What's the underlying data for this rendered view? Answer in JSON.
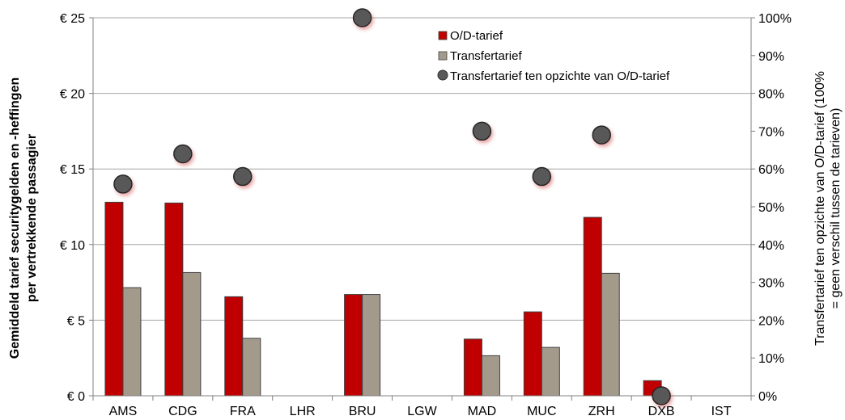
{
  "chart_data": {
    "type": "bar",
    "categories": [
      "AMS",
      "CDG",
      "FRA",
      "LHR",
      "BRU",
      "LGW",
      "MAD",
      "MUC",
      "ZRH",
      "DXB",
      "IST"
    ],
    "series": [
      {
        "name": "O/D-tarief",
        "type": "bar",
        "axis": "left",
        "color": "#c00000",
        "values": [
          12.8,
          12.75,
          6.55,
          null,
          6.7,
          null,
          3.75,
          5.55,
          11.8,
          1.0,
          null
        ]
      },
      {
        "name": "Transfertarief",
        "type": "bar",
        "axis": "left",
        "color": "#a39a8c",
        "values": [
          7.15,
          8.15,
          3.8,
          null,
          6.7,
          null,
          2.65,
          3.2,
          8.1,
          null,
          null
        ]
      },
      {
        "name": "Transfertarief ten opzichte van O/D-tarief",
        "type": "scatter",
        "axis": "right",
        "color": "#595959",
        "values": [
          56,
          64,
          58,
          null,
          100,
          null,
          70,
          58,
          69,
          0,
          null
        ]
      }
    ],
    "y_left": {
      "label_line1": "Gemiddeld tarief securitygelden en -heffingen",
      "label_line2": "per vertrekkende passagier",
      "ticks": [
        "€ 0",
        "€ 5",
        "€ 10",
        "€ 15",
        "€ 20",
        "€ 25"
      ],
      "tick_values": [
        0,
        5,
        10,
        15,
        20,
        25
      ],
      "ylim": [
        0,
        25
      ]
    },
    "y_right": {
      "label_line1": "Transfertarief ten opzichte van O/D-tarief (100%",
      "label_line2": "= geen verschil tussen de tarieven)",
      "ticks": [
        "0%",
        "10%",
        "20%",
        "30%",
        "40%",
        "50%",
        "60%",
        "70%",
        "80%",
        "90%",
        "100%"
      ],
      "tick_values": [
        0,
        10,
        20,
        30,
        40,
        50,
        60,
        70,
        80,
        90,
        100
      ],
      "ylim": [
        0,
        100
      ]
    },
    "grid": "horizontal",
    "legend_position": "top-right"
  }
}
